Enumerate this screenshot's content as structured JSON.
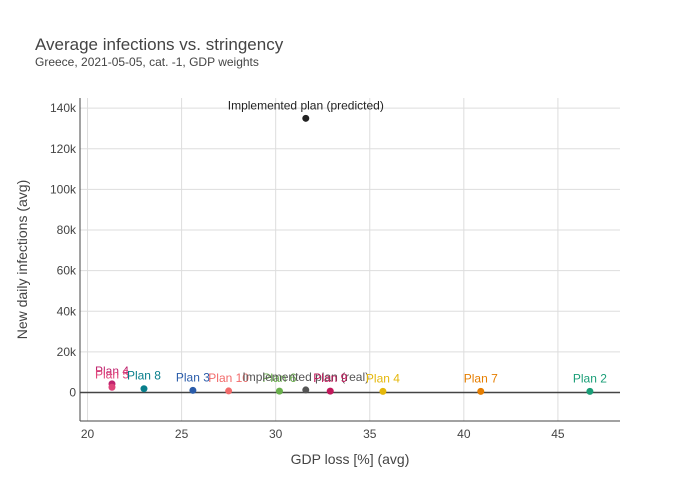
{
  "chart_data": {
    "type": "scatter",
    "title": "Average infections vs. stringency",
    "subtitle": "Greece, 2021-05-05, cat. -1, GDP weights",
    "xlabel": "GDP loss [%] (avg)",
    "ylabel": "New daily infections (avg)",
    "xlim": [
      19.6,
      48.3
    ],
    "ylim": [
      -14000,
      145000
    ],
    "xticks": [
      20,
      25,
      30,
      35,
      40,
      45
    ],
    "yticks": [
      0,
      20000,
      40000,
      60000,
      80000,
      100000,
      120000,
      140000
    ],
    "ytick_labels": [
      "0",
      "20k",
      "40k",
      "60k",
      "80k",
      "100k",
      "120k",
      "140k"
    ],
    "grid": true,
    "legend": "none",
    "points": [
      {
        "label": "Implemented plan (predicted)",
        "x": 31.6,
        "y": 135000,
        "color": "#222222"
      },
      {
        "label": "Plan 4",
        "x": 21.3,
        "y": 4300,
        "color": "#c0246e"
      },
      {
        "label": "Plan 5",
        "x": 21.3,
        "y": 2600,
        "color": "#e0457b"
      },
      {
        "label": "Plan 8",
        "x": 23.0,
        "y": 1900,
        "color": "#087e8b"
      },
      {
        "label": "Plan 3",
        "x": 25.6,
        "y": 1100,
        "color": "#2a5caa"
      },
      {
        "label": "Plan 10",
        "x": 27.5,
        "y": 800,
        "color": "#f26b6b"
      },
      {
        "label": "Plan 6",
        "x": 30.2,
        "y": 700,
        "color": "#6ab04c"
      },
      {
        "label": "Implemented plan (real)",
        "x": 31.6,
        "y": 1300,
        "color": "#555555"
      },
      {
        "label": "Plan 9",
        "x": 32.9,
        "y": 700,
        "color": "#c2185b"
      },
      {
        "label": "Plan 4",
        "x": 35.7,
        "y": 600,
        "color": "#e5b80b"
      },
      {
        "label": "Plan 7",
        "x": 40.9,
        "y": 600,
        "color": "#e67e00"
      },
      {
        "label": "Plan 2",
        "x": 46.7,
        "y": 600,
        "color": "#1a9e77"
      }
    ]
  }
}
